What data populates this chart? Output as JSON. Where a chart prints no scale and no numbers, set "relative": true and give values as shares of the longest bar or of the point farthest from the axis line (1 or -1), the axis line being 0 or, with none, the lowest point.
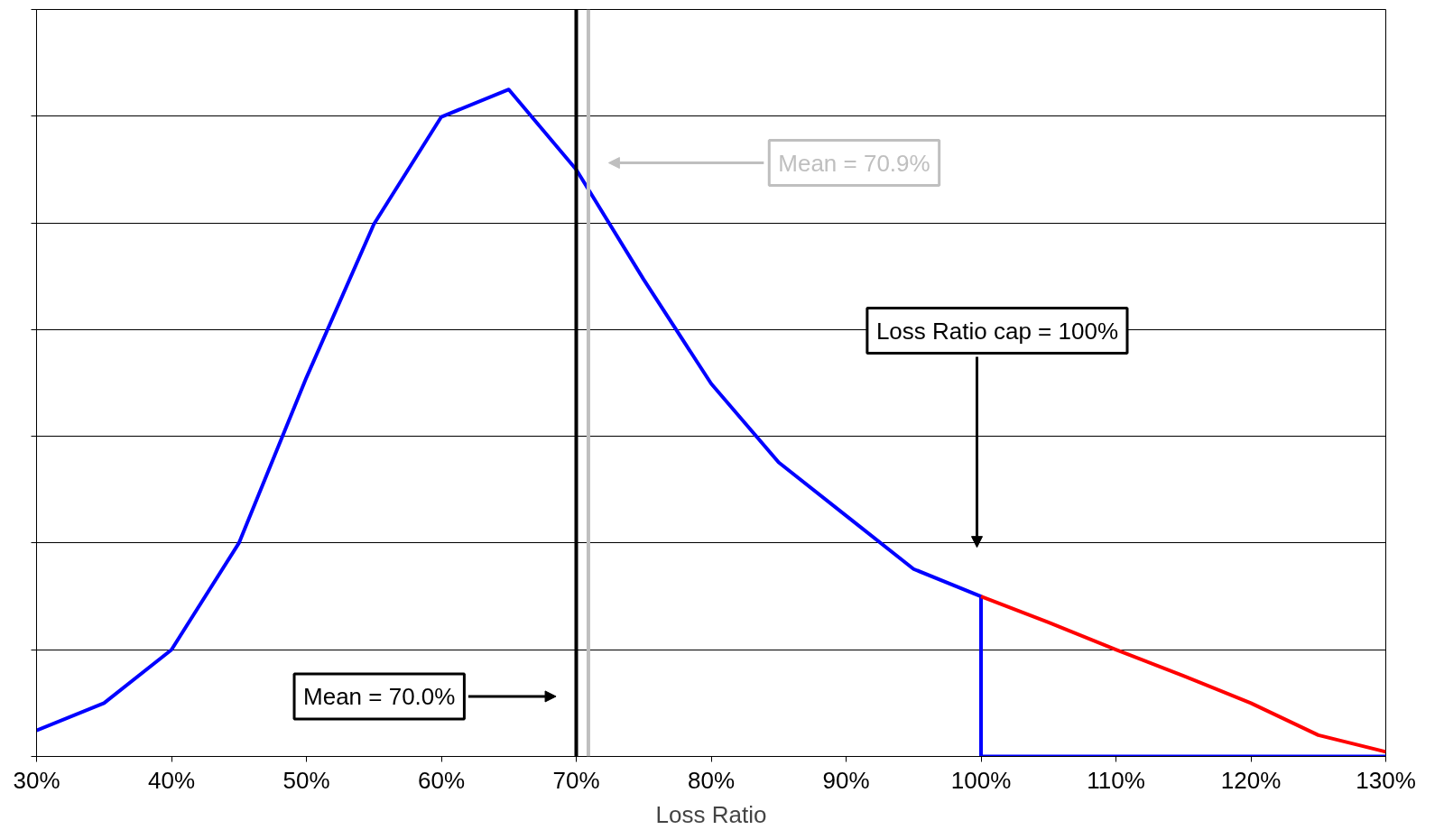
{
  "chart_data": {
    "type": "line",
    "relative": true,
    "xlabel": "Loss Ratio",
    "xlim": [
      30,
      130
    ],
    "xticks": [
      {
        "value": 30,
        "label": "30%"
      },
      {
        "value": 40,
        "label": "40%"
      },
      {
        "value": 50,
        "label": "50%"
      },
      {
        "value": 60,
        "label": "60%"
      },
      {
        "value": 70,
        "label": "70%"
      },
      {
        "value": 80,
        "label": "80%"
      },
      {
        "value": 90,
        "label": "90%"
      },
      {
        "value": 100,
        "label": "100%"
      },
      {
        "value": 110,
        "label": "110%"
      },
      {
        "value": 120,
        "label": "120%"
      },
      {
        "value": 130,
        "label": "130%"
      }
    ],
    "series": [
      {
        "color": "#0000ff",
        "x": [
          30,
          35,
          40,
          45,
          50,
          55,
          60,
          65,
          70,
          75,
          80,
          85,
          90,
          95,
          100,
          100,
          130
        ],
        "values": [
          0.039,
          0.08,
          0.16,
          0.32,
          0.568,
          0.798,
          0.959,
          1,
          0.88,
          0.715,
          0.559,
          0.441,
          0.361,
          0.281,
          0.24,
          0,
          0
        ]
      },
      {
        "color": "#ff0000",
        "x": [
          100,
          105,
          110,
          115,
          120,
          125,
          130
        ],
        "values": [
          0.24,
          0.201,
          0.16,
          0.121,
          0.08,
          0.032,
          0.007
        ]
      }
    ],
    "ref_lines": [
      {
        "axis": "x",
        "value": 70.0,
        "label": "Mean = 70.0%",
        "color": "#000000"
      },
      {
        "axis": "x",
        "value": 70.9,
        "label": "Mean = 70.9%",
        "color": "#bfbfbf"
      }
    ],
    "annotations": [
      "Loss Ratio cap = 100%"
    ],
    "grid": "y",
    "line_style": "solid",
    "marker": "none"
  }
}
